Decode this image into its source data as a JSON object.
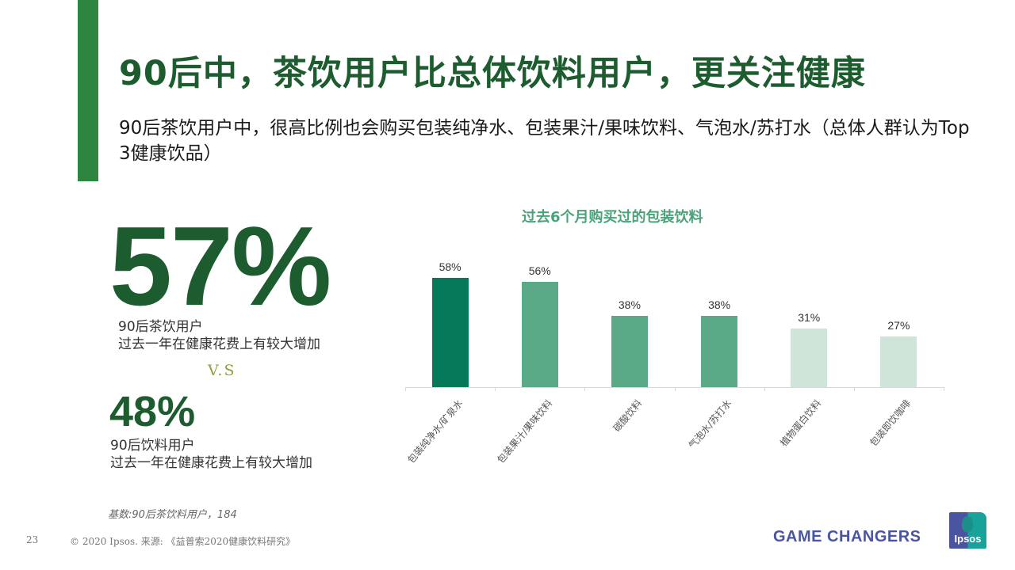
{
  "header": {
    "title": "90后中，茶饮用户比总体饮料用户，更关注健康",
    "subtitle": "90后茶饮用户中，很高比例也会购买包装纯净水、包装果汁/果味饮料、气泡水/苏打水（总体人群认为Top 3健康饮品）",
    "accent_color": "#2e8540"
  },
  "stats": {
    "primary": {
      "value": "57%",
      "line1": "90后茶饮用户",
      "line2": "过去一年在健康花费上有较大增加"
    },
    "vs_label": "V.S",
    "secondary": {
      "value": "48%",
      "line1": "90后饮料用户",
      "line2": "过去一年在健康花费上有较大增加"
    }
  },
  "chart_data": {
    "type": "bar",
    "title": "过去6个月购买过的包装饮料",
    "xlabel": "",
    "ylabel": "",
    "ylim": [
      0,
      70
    ],
    "grid": false,
    "legend": null,
    "categories": [
      "包装纯净水/矿泉水",
      "包装果汁/果味饮料",
      "碳酸饮料",
      "气泡水/苏打水",
      "植物蛋白饮料",
      "包装即饮咖啡"
    ],
    "values": [
      58,
      56,
      38,
      38,
      31,
      27
    ],
    "value_labels": [
      "58%",
      "56%",
      "38%",
      "38%",
      "31%",
      "27%"
    ],
    "bar_colors": [
      "#06795a",
      "#5aa987",
      "#5aa987",
      "#5aa987",
      "#d0e5d9",
      "#d0e5d9"
    ]
  },
  "footer": {
    "base_note": "基数:90后茶饮料用户，184",
    "page_number": "23",
    "copyright": "© 2020 Ipsos. 来源: 《益普索2020健康饮料研究》",
    "tagline": "GAME CHANGERS",
    "logo_text": "Ipsos"
  }
}
